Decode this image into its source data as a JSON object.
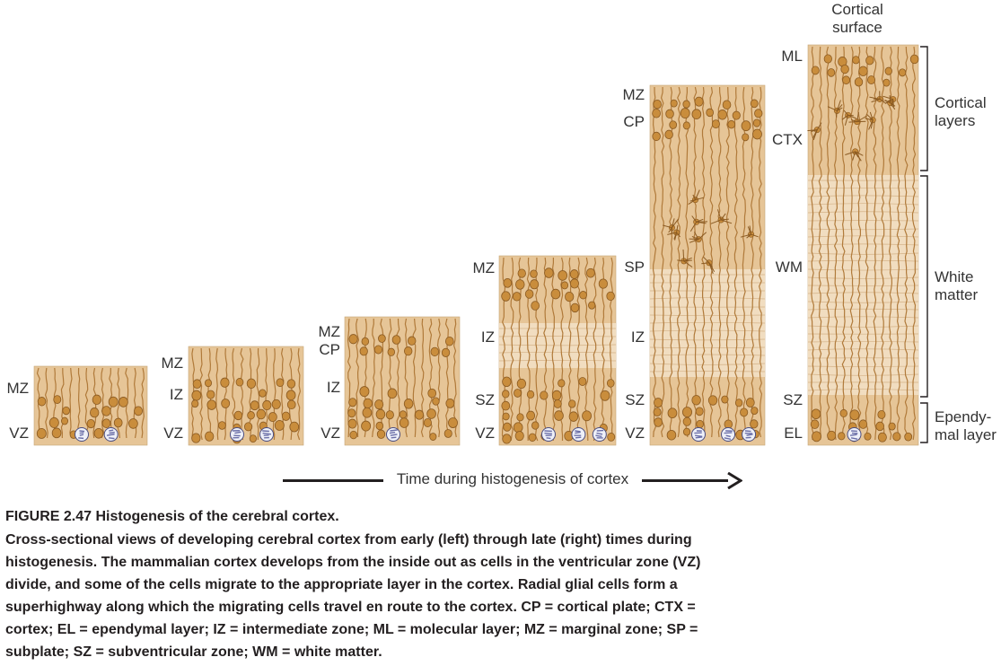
{
  "layer_labels": {
    "p1_mz": "MZ",
    "p1_vz": "VZ",
    "p2_mz": "MZ",
    "p2_iz": "IZ",
    "p2_vz": "VZ",
    "p3_mz": "MZ",
    "p3_cp": "CP",
    "p3_iz": "IZ",
    "p3_vz": "VZ",
    "p4_mz": "MZ",
    "p4_iz": "IZ",
    "p4_sz": "SZ",
    "p4_vz": "VZ",
    "p5_mz": "MZ",
    "p5_cp": "CP",
    "p5_sp": "SP",
    "p5_iz": "IZ",
    "p5_sz": "SZ",
    "p5_vz": "VZ",
    "p6_ml": "ML",
    "p6_ctx": "CTX",
    "p6_wm": "WM",
    "p6_sz": "SZ",
    "p6_el": "EL"
  },
  "top_label_line1": "Cortical",
  "top_label_line2": "surface",
  "bracket_labels": {
    "cortical_1": "Cortical",
    "cortical_2": "layers",
    "white_1": "White",
    "white_2": "matter",
    "ependymal_1": "Ependy-",
    "ependymal_2": "mal layer"
  },
  "timeline_label": "Time during histogenesis of cortex",
  "caption": {
    "title": "FIGURE 2.47  Histogenesis of the cerebral cortex.",
    "body": "Cross-sectional views of developing cerebral cortex from early (left) through late (right) times during histogenesis. The mammalian cortex develops from the inside out as cells in the ventricular zone (VZ) divide, and some of the cells migrate to the appropriate layer in the cortex. Radial glial cells form a superhighway along which the migrating cells travel en route to the cortex. CP = cortical plate; CTX = cortex; EL = ependymal layer; IZ = intermediate zone; ML = molecular layer; MZ = marginal zone; SP = subplate; SZ = subventricular zone; WM = white matter."
  },
  "colors": {
    "tissue": "#e6c597",
    "tissue_light": "#f1ddc0",
    "cell": "#c98d3c",
    "cell_dark": "#8a5a22",
    "fiber": "#b07a3a",
    "dividing": "#6b6fa8"
  }
}
